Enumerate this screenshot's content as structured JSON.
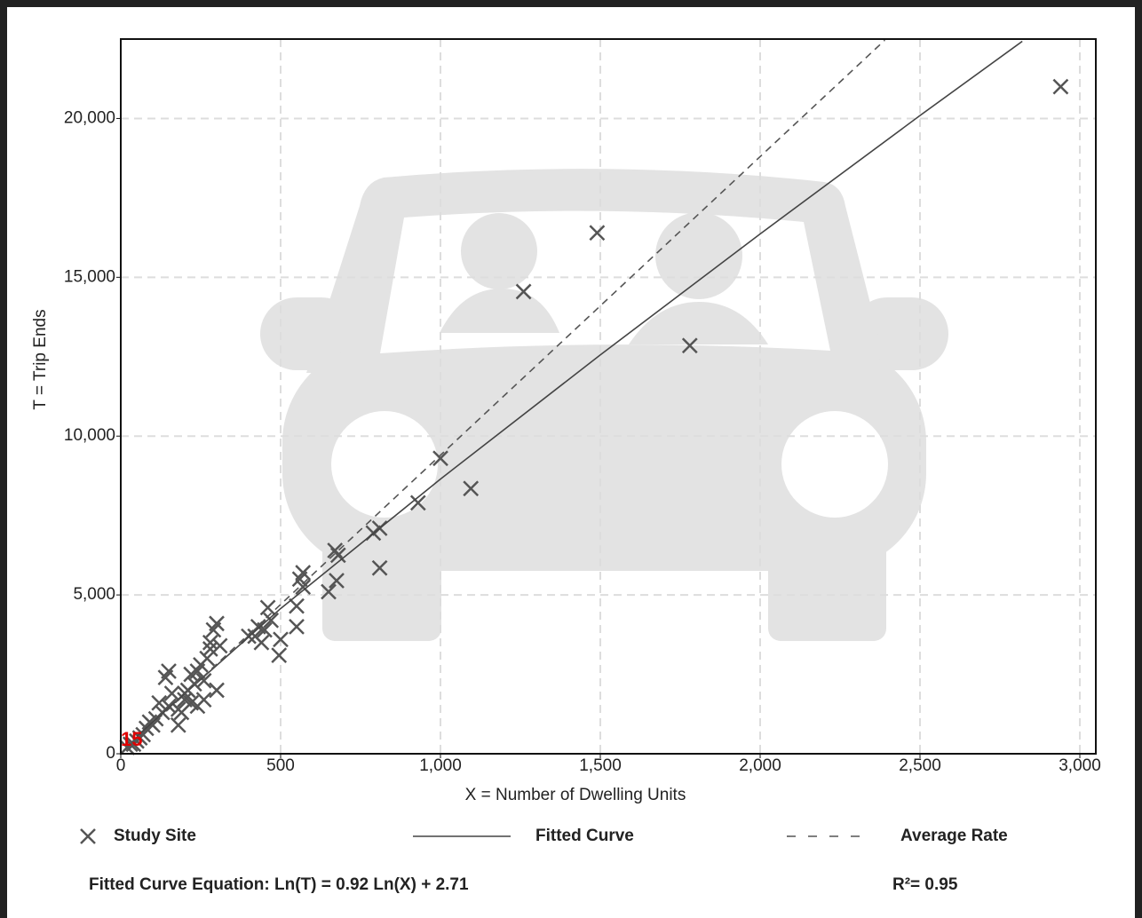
{
  "chart_data": {
    "type": "scatter",
    "x_label": "X = Number of Dwelling Units",
    "y_label": "T = Trip Ends",
    "xlim": [
      0,
      3050
    ],
    "ylim": [
      0,
      22500
    ],
    "xticks": [
      0,
      500,
      {
        "value": 1000,
        "label": "1,000"
      },
      {
        "value": 1500,
        "label": "1,500"
      },
      {
        "value": 2000,
        "label": "2,000"
      },
      {
        "value": 2500,
        "label": "2,500"
      },
      {
        "value": 3000,
        "label": "3,000"
      }
    ],
    "yticks": [
      0,
      {
        "value": 5000,
        "label": "5,000"
      },
      {
        "value": 10000,
        "label": "10,000"
      },
      {
        "value": 15000,
        "label": "15,000"
      },
      {
        "value": 20000,
        "label": "20,000"
      }
    ],
    "grid": true,
    "series": [
      {
        "name": "Study Site",
        "type": "scatter",
        "color": "#555555",
        "x": [
          2940,
          1490,
          1260,
          1780,
          1000,
          1095,
          930,
          810,
          790,
          810,
          670,
          680,
          675,
          650,
          570,
          560,
          570,
          550,
          550,
          460,
          470,
          450,
          440,
          430,
          420,
          400,
          500,
          495,
          300,
          290,
          310,
          280,
          270,
          250,
          240,
          300,
          260,
          230,
          220,
          210,
          200,
          180,
          150,
          140,
          160,
          150,
          130,
          120,
          110,
          100,
          90,
          80,
          70,
          60,
          50,
          40,
          30,
          20,
          180,
          200,
          220,
          240,
          260,
          280,
          190
        ],
        "values": [
          21000,
          16400,
          14550,
          12850,
          9300,
          8350,
          7900,
          7100,
          6950,
          5850,
          6400,
          6250,
          5450,
          5100,
          5700,
          5500,
          5250,
          4650,
          4000,
          4600,
          4200,
          3900,
          3500,
          4000,
          3700,
          3700,
          3600,
          3100,
          4100,
          3900,
          3400,
          3300,
          3000,
          2800,
          2600,
          2000,
          1700,
          2200,
          2500,
          2000,
          1700,
          900,
          2600,
          2400,
          1900,
          1500,
          1300,
          1600,
          1100,
          900,
          1000,
          800,
          600,
          500,
          400,
          300,
          300,
          200,
          1400,
          1900,
          1600,
          1500,
          2300,
          3500,
          1300
        ]
      },
      {
        "name": "Fitted Curve",
        "type": "line",
        "color": "#444444",
        "dash": "solid",
        "x": [
          50,
          500,
          1000,
          1500,
          2000,
          2500,
          2820
        ],
        "values": [
          549,
          4571,
          8648,
          12557,
          16365,
          20093,
          22430
        ]
      },
      {
        "name": "Average Rate",
        "type": "line",
        "color": "#555555",
        "dash": "dashed",
        "x": [
          0,
          2390
        ],
        "values": [
          0,
          22466
        ]
      }
    ],
    "equation": "Fitted Curve Equation: Ln(T) = 0.92 Ln(X) + 2.71",
    "r_squared_label": "R²= 0.95",
    "annotations": [
      "15"
    ]
  }
}
